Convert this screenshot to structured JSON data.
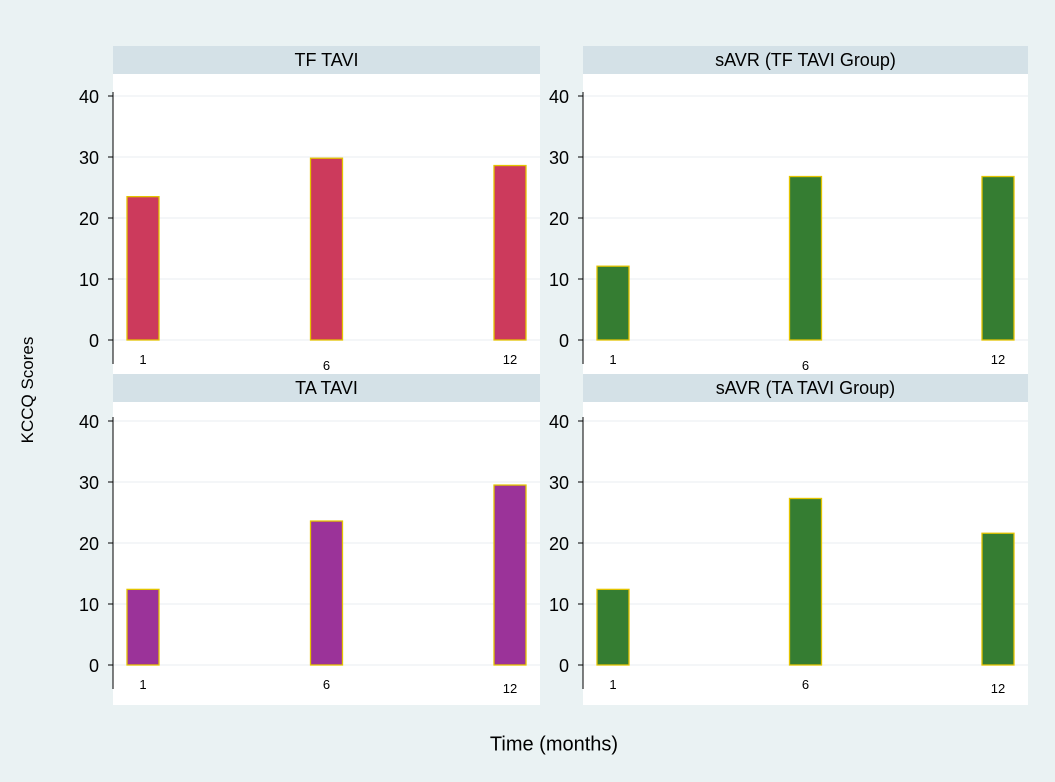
{
  "figure": {
    "ylabel": "KCCQ Scores",
    "xlabel": "Time (months)"
  },
  "chart_data": [
    {
      "type": "bar",
      "title": "TF TAVI",
      "categories": [
        "1",
        "6",
        "12"
      ],
      "values": [
        23.5,
        29.8,
        28.6
      ],
      "ylim": [
        0,
        40
      ],
      "yticks": [
        "0",
        "10",
        "20",
        "30",
        "40"
      ],
      "color": "#cc3a5c",
      "grid": true
    },
    {
      "type": "bar",
      "title": "sAVR (TF TAVI Group)",
      "categories": [
        "1",
        "6",
        "12"
      ],
      "values": [
        12.1,
        26.8,
        26.8
      ],
      "ylim": [
        0,
        40
      ],
      "yticks": [
        "0",
        "10",
        "20",
        "30",
        "40"
      ],
      "color": "#357d32",
      "grid": true
    },
    {
      "type": "bar",
      "title": "TA TAVI",
      "categories": [
        "1",
        "6",
        "12"
      ],
      "values": [
        12.4,
        23.6,
        29.5
      ],
      "ylim": [
        0,
        40
      ],
      "yticks": [
        "0",
        "10",
        "20",
        "30",
        "40"
      ],
      "color": "#9b3399",
      "grid": true
    },
    {
      "type": "bar",
      "title": "sAVR (TA TAVI Group)",
      "categories": [
        "1",
        "6",
        "12"
      ],
      "values": [
        12.4,
        27.3,
        21.6
      ],
      "ylim": [
        0,
        40
      ],
      "yticks": [
        "0",
        "10",
        "20",
        "30",
        "40"
      ],
      "color": "#357d32",
      "grid": true
    }
  ]
}
